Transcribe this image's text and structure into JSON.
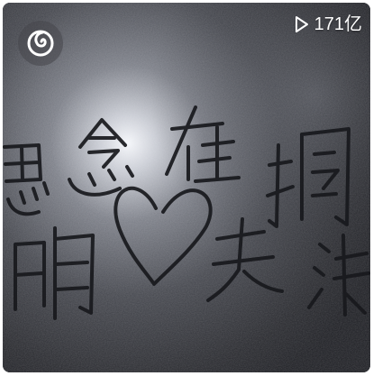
{
  "playlist_card": {
    "play_count": "171亿",
    "cover_handwriting": [
      "思念",
      "在",
      "晴",
      "天",
      "搁",
      "浅"
    ]
  },
  "colors": {
    "badge_background": "#46464a",
    "overlay_text": "#ffffff",
    "glass_dark": "#1c1d22",
    "glow": "#f4f6fa"
  },
  "icons": {
    "logo": "netease-music-logo-icon",
    "play": "play-triangle-icon"
  }
}
